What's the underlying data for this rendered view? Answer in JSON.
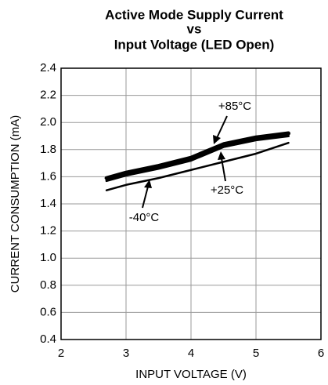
{
  "chart_data": {
    "type": "line",
    "title": [
      "Active Mode Supply Current",
      "vs",
      "Input Voltage (LED Open)"
    ],
    "xlabel": "INPUT VOLTAGE (V)",
    "ylabel": "CURRENT CONSUMPTION (mA)",
    "x": [
      2.7,
      3,
      3.5,
      4,
      4.5,
      5,
      5.5
    ],
    "series": [
      {
        "name": "+85°C",
        "color": "#000000",
        "width": 5,
        "values": [
          1.59,
          1.63,
          1.68,
          1.74,
          1.84,
          1.89,
          1.92
        ]
      },
      {
        "name": "+25°C",
        "color": "#000000",
        "width": 3,
        "values": [
          1.57,
          1.61,
          1.66,
          1.72,
          1.82,
          1.87,
          1.9
        ]
      },
      {
        "name": "-40°C",
        "color": "#000000",
        "width": 2.5,
        "values": [
          1.5,
          1.54,
          1.59,
          1.65,
          1.71,
          1.77,
          1.85
        ]
      }
    ],
    "xlim": [
      2,
      6
    ],
    "xticks": [
      2,
      3,
      4,
      5,
      6
    ],
    "ylim": [
      0.4,
      2.4
    ],
    "yticks": [
      0.4,
      0.6,
      0.8,
      {
        "value": 1.0,
        "label": "1.0"
      },
      1.2,
      1.4,
      1.6,
      1.8,
      {
        "value": 2.0,
        "label": "2.0"
      },
      2.2,
      2.4
    ],
    "grid": true
  }
}
